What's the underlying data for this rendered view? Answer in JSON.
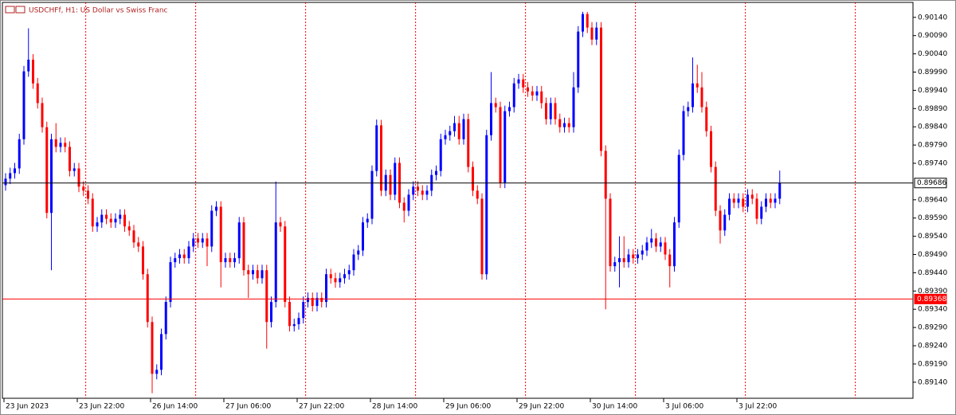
{
  "chart_data": {
    "type": "candlestick",
    "title": "USDCHFf, H1:  US Dollar vs Swiss Franc",
    "up_color": "#0000ff",
    "down_color": "#ff0000",
    "ylim": [
      0.89096,
      0.90181
    ],
    "yticks": [
      {
        "value": 0.9014,
        "label": "0.90140"
      },
      {
        "value": 0.9009,
        "label": "0.90090"
      },
      {
        "value": 0.9004,
        "label": "0.90040"
      },
      {
        "value": 0.8999,
        "label": "0.89990"
      },
      {
        "value": 0.8994,
        "label": "0.89940"
      },
      {
        "value": 0.8989,
        "label": "0.89890"
      },
      {
        "value": 0.8984,
        "label": "0.89840"
      },
      {
        "value": 0.8979,
        "label": "0.89790"
      },
      {
        "value": 0.8974,
        "label": "0.89740"
      },
      {
        "value": 0.8964,
        "label": "0.89640"
      },
      {
        "value": 0.8959,
        "label": "0.89590"
      },
      {
        "value": 0.8954,
        "label": "0.89540"
      },
      {
        "value": 0.8949,
        "label": "0.89490"
      },
      {
        "value": 0.8944,
        "label": "0.89440"
      },
      {
        "value": 0.8939,
        "label": "0.89390"
      },
      {
        "value": 0.8934,
        "label": "0.89340"
      },
      {
        "value": 0.8929,
        "label": "0.89290"
      },
      {
        "value": 0.8924,
        "label": "0.89240"
      },
      {
        "value": 0.8919,
        "label": "0.89190"
      },
      {
        "value": 0.8914,
        "label": "0.89140"
      }
    ],
    "hlines": [
      {
        "value": 0.89686,
        "color": "#000000"
      },
      {
        "value": 0.89368,
        "color": "#ff0000"
      }
    ],
    "categories": [
      "23 Jun 2023",
      null,
      null,
      null,
      null,
      null,
      null,
      null,
      null,
      null,
      null,
      null,
      null,
      null,
      null,
      null,
      "23 Jun 22:00",
      null,
      null,
      null,
      null,
      null,
      null,
      null,
      null,
      null,
      null,
      null,
      null,
      null,
      null,
      null,
      "26 Jun 14:00",
      null,
      null,
      null,
      null,
      null,
      null,
      null,
      null,
      null,
      null,
      null,
      null,
      null,
      null,
      null,
      "27 Jun 06:00",
      null,
      null,
      null,
      null,
      null,
      null,
      null,
      null,
      null,
      null,
      null,
      null,
      null,
      null,
      null,
      "27 Jun 22:00",
      null,
      null,
      null,
      null,
      null,
      null,
      null,
      null,
      null,
      null,
      null,
      null,
      null,
      null,
      null,
      "28 Jun 14:00",
      null,
      null,
      null,
      null,
      null,
      null,
      null,
      null,
      null,
      null,
      null,
      null,
      null,
      null,
      null,
      "29 Jun 06:00",
      null,
      null,
      null,
      null,
      null,
      null,
      null,
      null,
      null,
      null,
      null,
      null,
      null,
      null,
      null,
      "29 Jun 22:00",
      null,
      null,
      null,
      null,
      null,
      null,
      null,
      null,
      null,
      null,
      null,
      null,
      null,
      null,
      null,
      "30 Jun 14:00",
      null,
      null,
      null,
      null,
      null,
      null,
      null,
      null,
      null,
      null,
      null,
      null,
      null,
      null,
      null,
      "3 Jul 06:00",
      null,
      null,
      null,
      null,
      null,
      null,
      null,
      null,
      null,
      null,
      null,
      null,
      null,
      null,
      null,
      "3 Jul 22:00",
      null,
      null,
      null,
      null,
      null,
      null,
      null,
      null,
      null
    ],
    "open": [
      0.8968,
      0.89698,
      0.89713,
      0.89726,
      0.89806,
      0.89992,
      0.90024,
      0.89959,
      0.89905,
      0.89839,
      0.89604,
      0.89806,
      0.89785,
      0.89796,
      0.89785,
      0.89719,
      0.89726,
      0.89676,
      0.89665,
      0.89643,
      0.89567,
      0.89578,
      0.89599,
      0.89588,
      0.89578,
      0.89588,
      0.89599,
      0.89567,
      0.89556,
      0.89523,
      0.89512,
      0.89436,
      0.89305,
      0.89163,
      0.89174,
      0.89272,
      0.8936,
      0.89469,
      0.8948,
      0.8949,
      0.8948,
      0.89512,
      0.89534,
      0.89523,
      0.89534,
      0.89512,
      0.8961,
      0.89621,
      0.89469,
      0.8948,
      0.89469,
      0.8948,
      0.89578,
      0.89447,
      0.89436,
      0.89447,
      0.89425,
      0.89447,
      0.89305,
      0.8936,
      0.89578,
      0.89567,
      0.8936,
      0.89294,
      0.89299,
      0.89316,
      0.8936,
      0.89371,
      0.89349,
      0.89371,
      0.8936,
      0.89436,
      0.89425,
      0.89414,
      0.89425,
      0.89436,
      0.89447,
      0.8949,
      0.89501,
      0.89578,
      0.89588,
      0.89719,
      0.89844,
      0.89665,
      0.89708,
      0.89654,
      0.89741,
      0.89632,
      0.8961,
      0.89654,
      0.89676,
      0.89665,
      0.89654,
      0.89665,
      0.89708,
      0.89719,
      0.89806,
      0.89817,
      0.89828,
      0.8985,
      0.89806,
      0.89861,
      0.8973,
      0.89665,
      0.89643,
      0.89436,
      0.89817,
      0.89905,
      0.89894,
      0.89687,
      0.89883,
      0.89894,
      0.89959,
      0.8997,
      0.89948,
      0.89937,
      0.89926,
      0.89937,
      0.89905,
      0.89861,
      0.89905,
      0.89861,
      0.89839,
      0.8985,
      0.89839,
      0.89948,
      0.90101,
      0.90149,
      0.90112,
      0.90079,
      0.90112,
      0.89774,
      0.89643,
      0.89458,
      0.89469,
      0.8948,
      0.89469,
      0.8949,
      0.8948,
      0.8949,
      0.89501,
      0.89523,
      0.89534,
      0.89512,
      0.89523,
      0.8949,
      0.89458,
      0.89578,
      0.89763,
      0.89883,
      0.89894,
      0.89959,
      0.89948,
      0.89894,
      0.89828,
      0.8973,
      0.8961,
      0.89556,
      0.89599,
      0.89643,
      0.89632,
      0.89643,
      0.89621,
      0.89654,
      0.89643,
      0.89588,
      0.89621,
      0.89643,
      0.89632,
      0.89643
    ],
    "high": [
      0.89713,
      0.89728,
      0.89741,
      0.89821,
      0.90007,
      0.9011,
      0.90039,
      0.89974,
      0.8992,
      0.89854,
      0.89821,
      0.8985,
      0.89811,
      0.89811,
      0.898,
      0.89741,
      0.89741,
      0.89691,
      0.8968,
      0.89658,
      0.89593,
      0.89614,
      0.89614,
      0.89603,
      0.89603,
      0.89614,
      0.89614,
      0.89582,
      0.89571,
      0.89538,
      0.89527,
      0.89451,
      0.8932,
      0.89189,
      0.89287,
      0.89375,
      0.89484,
      0.89495,
      0.89505,
      0.89505,
      0.89527,
      0.89549,
      0.89549,
      0.89549,
      0.89549,
      0.89625,
      0.89636,
      0.89636,
      0.89495,
      0.89495,
      0.89495,
      0.89593,
      0.89593,
      0.89462,
      0.89462,
      0.89462,
      0.89462,
      0.89462,
      0.89375,
      0.8969,
      0.89593,
      0.89582,
      0.89375,
      0.89314,
      0.89331,
      0.89375,
      0.89386,
      0.89386,
      0.89386,
      0.89386,
      0.89451,
      0.89451,
      0.8944,
      0.8944,
      0.89451,
      0.89462,
      0.89505,
      0.89516,
      0.89593,
      0.89603,
      0.89734,
      0.8986,
      0.89859,
      0.89723,
      0.89723,
      0.89756,
      0.89756,
      0.89647,
      0.89669,
      0.89691,
      0.89691,
      0.8968,
      0.8968,
      0.89723,
      0.89734,
      0.89821,
      0.89832,
      0.89843,
      0.8987,
      0.8987,
      0.89876,
      0.89876,
      0.89745,
      0.8968,
      0.89658,
      0.89832,
      0.8999,
      0.8992,
      0.89909,
      0.89898,
      0.89909,
      0.89974,
      0.89985,
      0.89985,
      0.89963,
      0.89952,
      0.89952,
      0.89952,
      0.8992,
      0.8992,
      0.8992,
      0.89876,
      0.89865,
      0.89865,
      0.8999,
      0.90116,
      0.90155,
      0.90155,
      0.90127,
      0.90127,
      0.90127,
      0.89789,
      0.89658,
      0.89484,
      0.8954,
      0.8954,
      0.89505,
      0.89505,
      0.89505,
      0.89516,
      0.89538,
      0.8956,
      0.89549,
      0.89538,
      0.89538,
      0.89505,
      0.89593,
      0.89778,
      0.89898,
      0.89909,
      0.9003,
      0.9001,
      0.8999,
      0.89909,
      0.89843,
      0.89745,
      0.89625,
      0.89614,
      0.89658,
      0.89658,
      0.89658,
      0.89658,
      0.89669,
      0.89669,
      0.89658,
      0.89636,
      0.89658,
      0.89658,
      0.89658,
      0.8972
    ],
    "low": [
      0.89665,
      0.89683,
      0.89698,
      0.89711,
      0.89791,
      0.89977,
      0.89944,
      0.8989,
      0.89824,
      0.89589,
      0.89447,
      0.8977,
      0.8977,
      0.8977,
      0.89704,
      0.89704,
      0.89661,
      0.8965,
      0.89628,
      0.89552,
      0.89552,
      0.89563,
      0.89573,
      0.89563,
      0.89563,
      0.89573,
      0.89552,
      0.89541,
      0.89508,
      0.89497,
      0.89421,
      0.8929,
      0.8911,
      0.89148,
      0.89159,
      0.89257,
      0.89345,
      0.89454,
      0.89465,
      0.89465,
      0.89465,
      0.89497,
      0.89508,
      0.89508,
      0.89458,
      0.89497,
      0.89595,
      0.894,
      0.89454,
      0.89454,
      0.89454,
      0.89465,
      0.89432,
      0.89371,
      0.89421,
      0.8941,
      0.8941,
      0.89232,
      0.8929,
      0.89345,
      0.89552,
      0.89345,
      0.89279,
      0.89279,
      0.89284,
      0.89301,
      0.89345,
      0.89334,
      0.89334,
      0.89345,
      0.89345,
      0.8941,
      0.89399,
      0.89399,
      0.8941,
      0.89421,
      0.89432,
      0.89475,
      0.89486,
      0.89563,
      0.89573,
      0.89704,
      0.8965,
      0.8965,
      0.89639,
      0.89639,
      0.89617,
      0.89578,
      0.89595,
      0.89639,
      0.8965,
      0.89639,
      0.89639,
      0.8965,
      0.89693,
      0.89704,
      0.89791,
      0.89802,
      0.89813,
      0.89791,
      0.89791,
      0.89715,
      0.8965,
      0.89628,
      0.89421,
      0.89421,
      0.89802,
      0.89879,
      0.89672,
      0.89672,
      0.89868,
      0.89879,
      0.89944,
      0.89933,
      0.89922,
      0.89911,
      0.89911,
      0.8989,
      0.89846,
      0.89846,
      0.89846,
      0.89824,
      0.89824,
      0.89824,
      0.89824,
      0.89933,
      0.90086,
      0.90097,
      0.90064,
      0.90064,
      0.89759,
      0.8934,
      0.89443,
      0.89443,
      0.894,
      0.89454,
      0.89454,
      0.89465,
      0.89465,
      0.89475,
      0.89486,
      0.89508,
      0.89497,
      0.89497,
      0.89475,
      0.894,
      0.89443,
      0.89563,
      0.89748,
      0.89868,
      0.89879,
      0.89933,
      0.89879,
      0.89813,
      0.89715,
      0.89595,
      0.8952,
      0.89541,
      0.89584,
      0.89617,
      0.89617,
      0.89606,
      0.89606,
      0.89628,
      0.89573,
      0.89573,
      0.89606,
      0.89617,
      0.89617,
      0.89628
    ],
    "close": [
      0.89698,
      0.89713,
      0.89726,
      0.89806,
      0.89992,
      0.90024,
      0.89959,
      0.89905,
      0.89839,
      0.89604,
      0.89806,
      0.89785,
      0.89796,
      0.89785,
      0.89719,
      0.89726,
      0.89676,
      0.89665,
      0.89643,
      0.89567,
      0.89578,
      0.89599,
      0.89588,
      0.89578,
      0.89588,
      0.89599,
      0.89567,
      0.89556,
      0.89523,
      0.89512,
      0.89436,
      0.89305,
      0.89163,
      0.89174,
      0.89272,
      0.8936,
      0.89469,
      0.8948,
      0.8949,
      0.8948,
      0.89512,
      0.89534,
      0.89523,
      0.89534,
      0.89512,
      0.8961,
      0.89621,
      0.89469,
      0.8948,
      0.89469,
      0.8948,
      0.89578,
      0.89447,
      0.89436,
      0.89447,
      0.89425,
      0.89447,
      0.89305,
      0.8936,
      0.89578,
      0.89567,
      0.8936,
      0.89294,
      0.89299,
      0.89316,
      0.8936,
      0.89371,
      0.89349,
      0.89371,
      0.8936,
      0.89436,
      0.89425,
      0.89414,
      0.89425,
      0.89436,
      0.89447,
      0.8949,
      0.89501,
      0.89578,
      0.89588,
      0.89719,
      0.89844,
      0.89665,
      0.89708,
      0.89654,
      0.89741,
      0.89632,
      0.8961,
      0.89654,
      0.89676,
      0.89665,
      0.89654,
      0.89665,
      0.89708,
      0.89719,
      0.89806,
      0.89817,
      0.89828,
      0.8985,
      0.89806,
      0.89861,
      0.8973,
      0.89665,
      0.89643,
      0.89436,
      0.89817,
      0.89905,
      0.89894,
      0.89687,
      0.89883,
      0.89894,
      0.89959,
      0.8997,
      0.89948,
      0.89937,
      0.89926,
      0.89937,
      0.89905,
      0.89861,
      0.89905,
      0.89861,
      0.89839,
      0.8985,
      0.89839,
      0.89948,
      0.90101,
      0.90149,
      0.90112,
      0.90079,
      0.90112,
      0.89774,
      0.89643,
      0.89458,
      0.89469,
      0.8948,
      0.89469,
      0.8949,
      0.8948,
      0.8949,
      0.89501,
      0.89523,
      0.89534,
      0.89512,
      0.89523,
      0.8949,
      0.89458,
      0.89578,
      0.89763,
      0.89883,
      0.89894,
      0.89959,
      0.89948,
      0.89894,
      0.89828,
      0.8973,
      0.8961,
      0.89556,
      0.89599,
      0.89643,
      0.89632,
      0.89643,
      0.89621,
      0.89654,
      0.89643,
      0.89588,
      0.89621,
      0.89643,
      0.89632,
      0.89643,
      0.89686
    ]
  }
}
